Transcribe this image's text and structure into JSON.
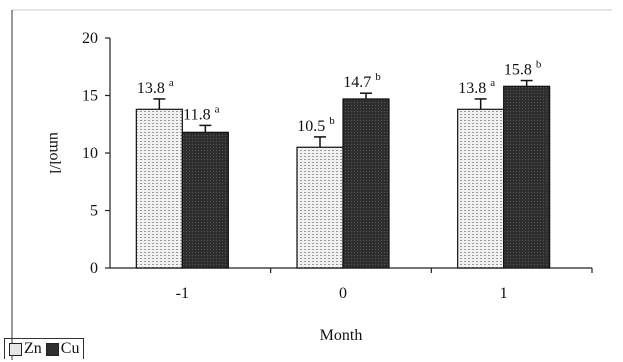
{
  "chart_data": {
    "type": "bar",
    "categories": [
      "-1",
      "0",
      "1"
    ],
    "series": [
      {
        "name": "Zn",
        "values": [
          13.8,
          10.5,
          13.8
        ],
        "errors": [
          0.9,
          0.9,
          0.9
        ],
        "labels": [
          "13.8",
          "10.5",
          "13.8"
        ],
        "sig": [
          "a",
          "b",
          "a"
        ],
        "color": "#e6e6e6"
      },
      {
        "name": "Cu",
        "values": [
          11.8,
          14.7,
          15.8
        ],
        "errors": [
          0.6,
          0.5,
          0.5
        ],
        "labels": [
          "11.8",
          "14.7",
          "15.8"
        ],
        "sig": [
          "a",
          "b",
          "b"
        ],
        "color": "#2f2f2f"
      }
    ],
    "xlabel": "Month",
    "ylabel": "umol/l",
    "ylim": [
      0,
      20
    ],
    "yticks": [
      0,
      5,
      10,
      15,
      20
    ],
    "ytick_labels": [
      "0",
      "5",
      "10",
      "15",
      "20"
    ],
    "grid": false,
    "legend_position": "bottom-left"
  },
  "legend": {
    "zn_label": "Zn",
    "cu_label": "Cu"
  }
}
